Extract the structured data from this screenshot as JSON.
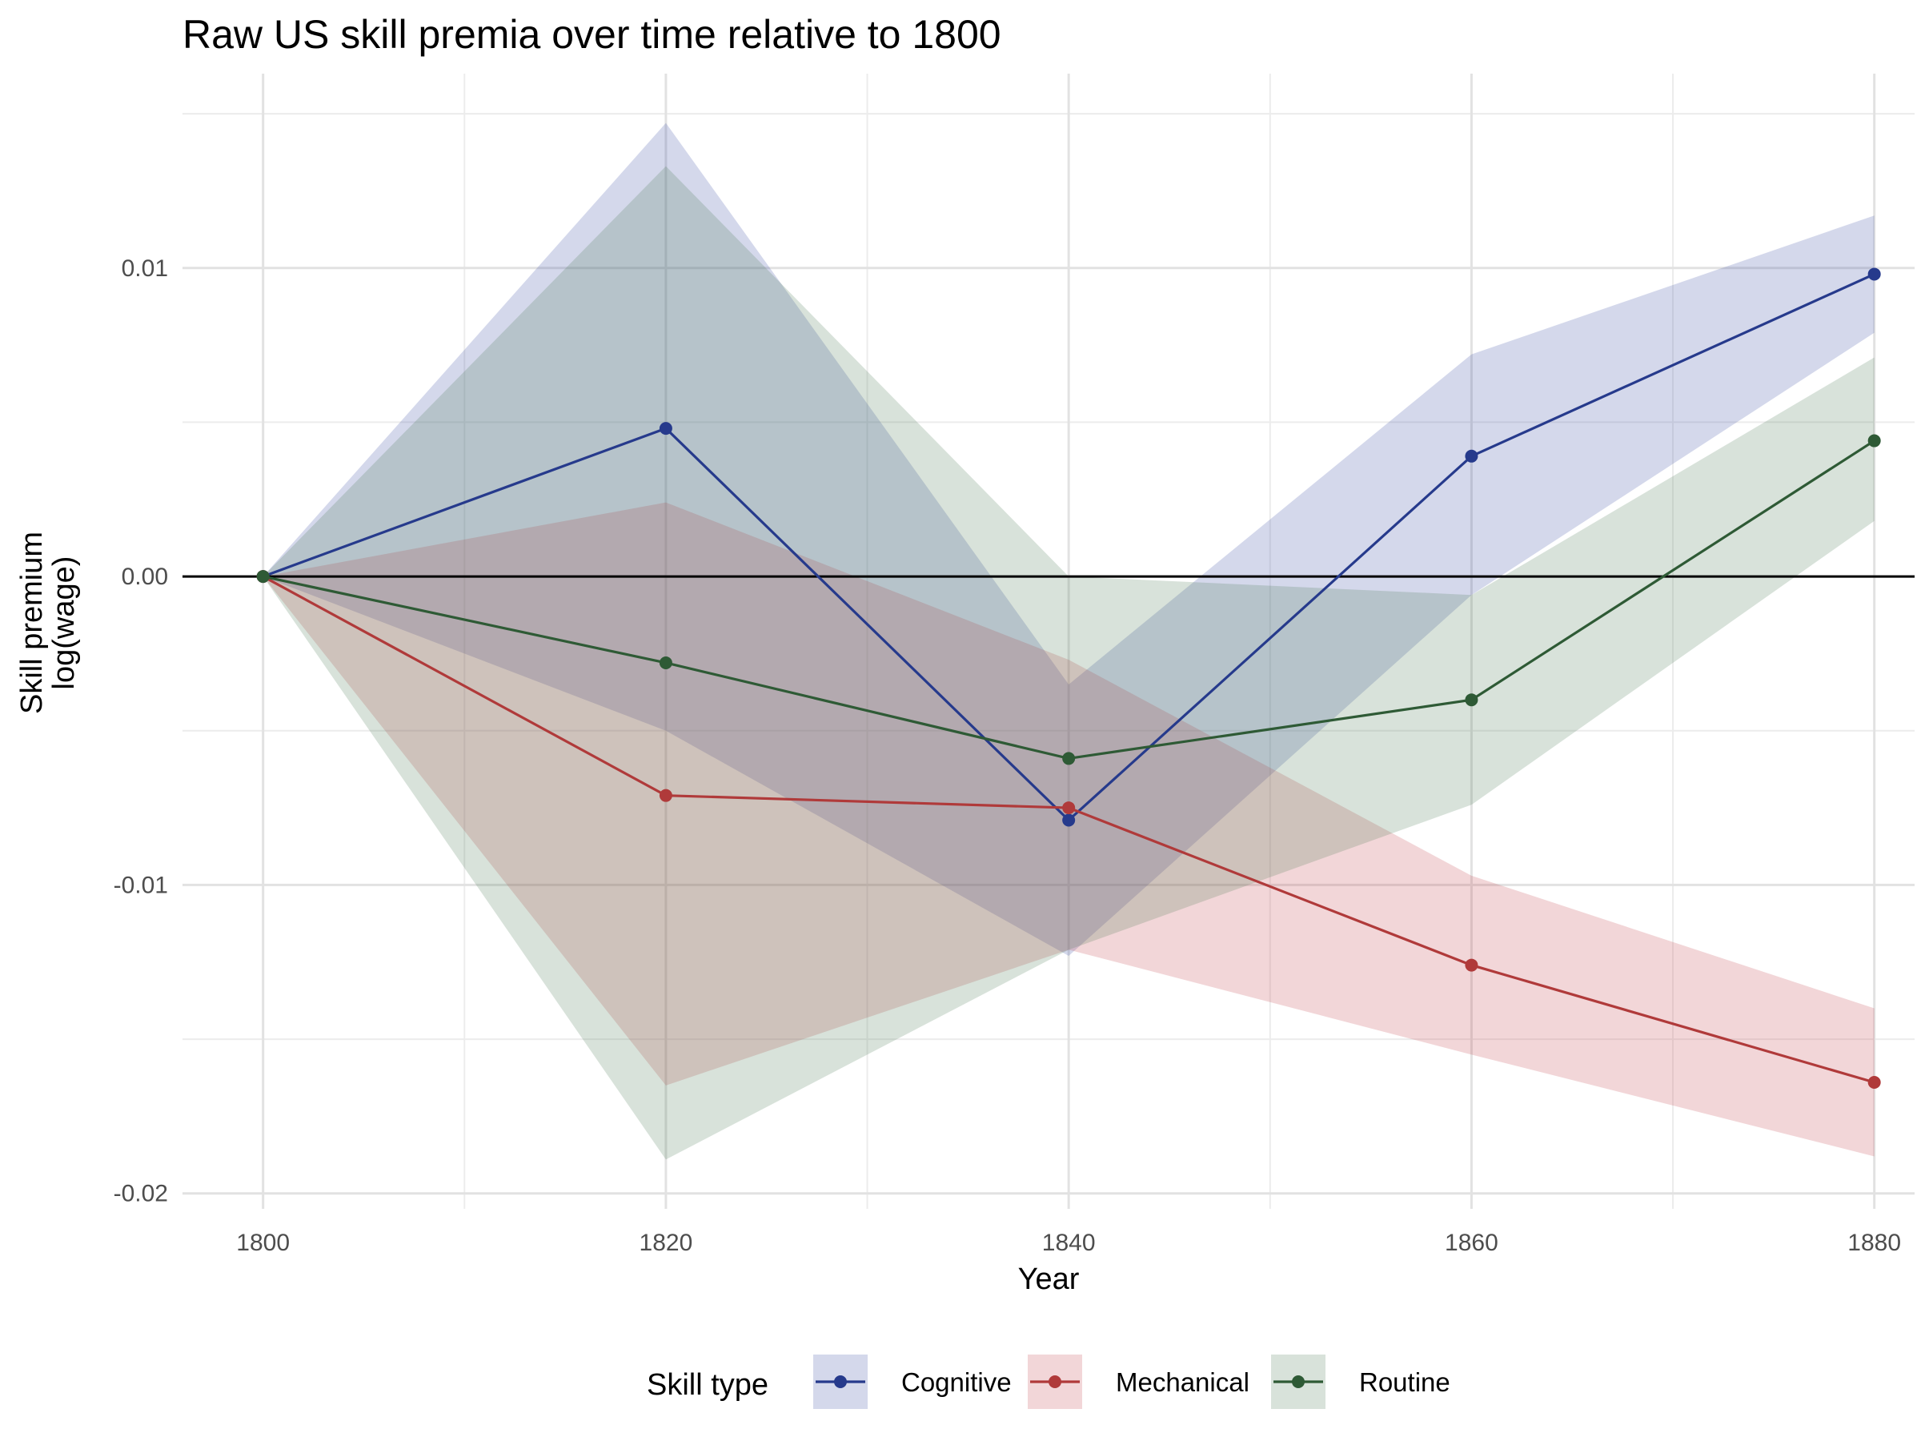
{
  "chart_data": {
    "type": "line",
    "title": "Raw US skill premia over time relative to 1800",
    "xlabel": "Year",
    "ylabel_lines": [
      "Skill premium",
      "log(wage)"
    ],
    "x": [
      1800,
      1820,
      1840,
      1860,
      1880
    ],
    "x_ticks": [
      "1800",
      "1820",
      "1840",
      "1860",
      "1880"
    ],
    "y_ticks": [
      {
        "value": 0.01,
        "label": "0.01"
      },
      {
        "value": 0.0,
        "label": "0.00"
      },
      {
        "value": -0.01,
        "label": "-0.01"
      },
      {
        "value": -0.02,
        "label": "-0.02"
      }
    ],
    "xlim": [
      1796,
      1882
    ],
    "ylim": [
      -0.0205,
      0.0163
    ],
    "grid": true,
    "reference_line_y": 0,
    "legend": {
      "title": "Skill type",
      "placement": "bottom"
    },
    "series": [
      {
        "name": "Cognitive",
        "color": "#263a8c",
        "fill": "#3b4fa3",
        "values": [
          0.0,
          0.0048,
          -0.0079,
          0.0039,
          0.0098
        ],
        "lower": [
          0.0,
          -0.005,
          -0.0123,
          -0.0006,
          0.0079
        ],
        "upper": [
          0.0,
          0.0147,
          -0.0035,
          0.0072,
          0.0117
        ]
      },
      {
        "name": "Mechanical",
        "color": "#b03a3a",
        "fill": "#c2464f",
        "values": [
          0.0,
          -0.0071,
          -0.0075,
          -0.0126,
          -0.0164
        ],
        "lower": [
          0.0,
          -0.0165,
          -0.0121,
          -0.0155,
          -0.0188
        ],
        "upper": [
          0.0,
          0.0024,
          -0.0027,
          -0.0097,
          -0.014
        ]
      },
      {
        "name": "Routine",
        "color": "#2e5a35",
        "fill": "#4f7a58",
        "values": [
          0.0,
          -0.0028,
          -0.0059,
          -0.004,
          0.0044
        ],
        "lower": [
          0.0,
          -0.0189,
          -0.0121,
          -0.0074,
          0.0018
        ],
        "upper": [
          0.0,
          0.0133,
          0.0,
          -0.0006,
          0.0071
        ]
      }
    ]
  }
}
